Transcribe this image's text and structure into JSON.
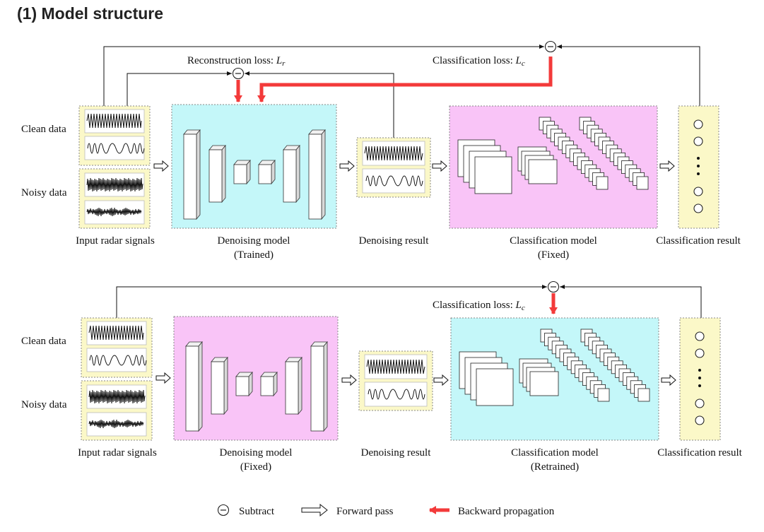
{
  "heading": "(1) Model structure",
  "top": {
    "clean_label": "Clean data",
    "noisy_label": "Noisy data",
    "input_caption": "Input radar signals",
    "denoise_caption_1": "Denoising model",
    "denoise_caption_2": "(Trained)",
    "result_caption": "Denoising result",
    "classifier_caption_1": "Classification model",
    "classifier_caption_2": "(Fixed)",
    "output_caption": "Classification result",
    "recon_loss_text": "Reconstruction loss: ",
    "recon_loss_symbol": "L",
    "recon_loss_sub": "r",
    "class_loss_text": "Classification loss: ",
    "class_loss_symbol": "L",
    "class_loss_sub": "c"
  },
  "bottom": {
    "clean_label": "Clean data",
    "noisy_label": "Noisy data",
    "input_caption": "Input radar signals",
    "denoise_caption_1": "Denoising model",
    "denoise_caption_2": "(Fixed)",
    "result_caption": "Denoising result",
    "classifier_caption_1": "Classification model",
    "classifier_caption_2": "(Retrained)",
    "output_caption": "Classification result",
    "class_loss_text": "Classification loss: ",
    "class_loss_symbol": "L",
    "class_loss_sub": "c"
  },
  "legend": {
    "subtract": "Subtract",
    "forward": "Forward pass",
    "backward": "Backward propagation"
  },
  "colors": {
    "trained_box": "#c4f7f9",
    "fixed_box": "#f9c4f7",
    "signal_box": "#fbf8c8",
    "backward_arrow": "#f33a3a"
  }
}
